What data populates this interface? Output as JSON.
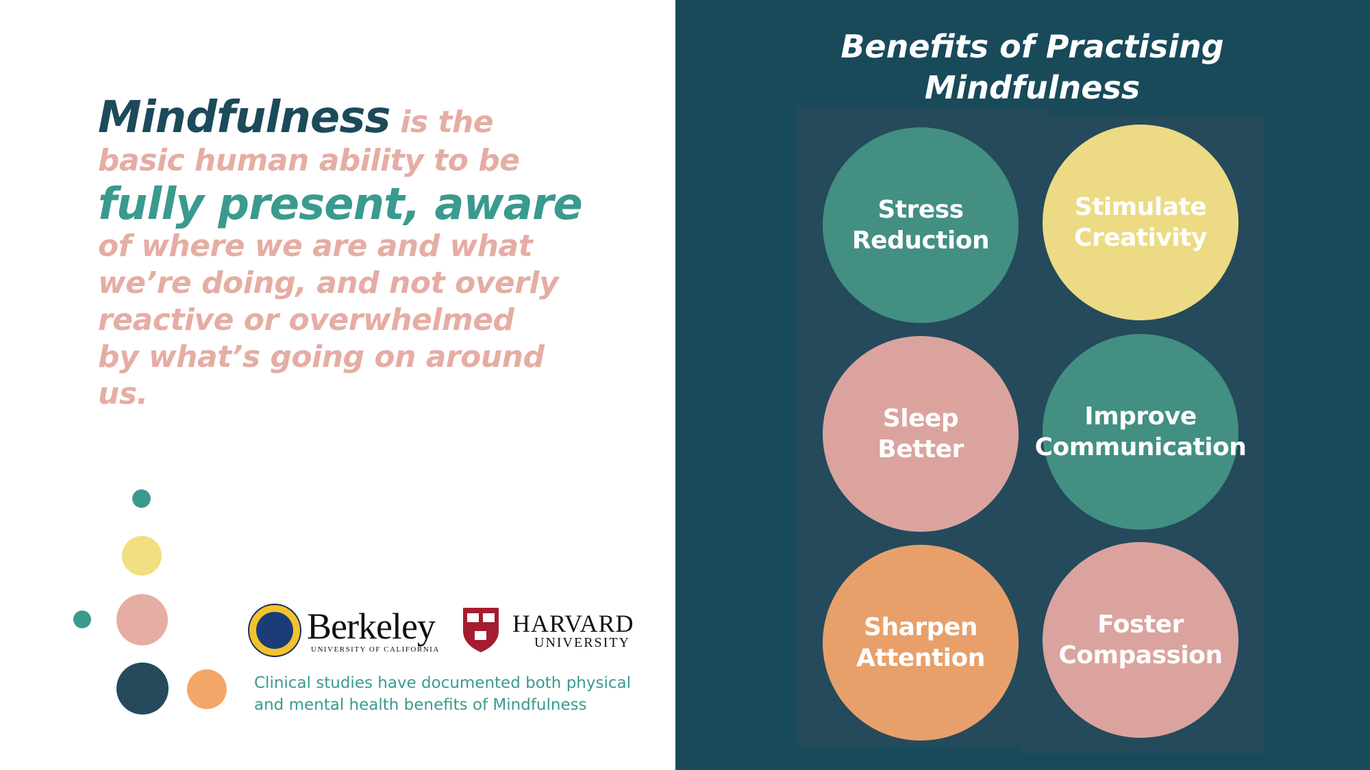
{
  "colors": {
    "dark_teal": "#1c4a5a",
    "teal": "#3a9a8e",
    "pink": "#e5ada3",
    "yellow": "#f1df82",
    "orange": "#e9a06c",
    "panel_bg": "#184a5a"
  },
  "quote": {
    "line1_bold": "Mindfulness",
    "line1_rest": " is the",
    "line2": "basic human ability to be",
    "line3": "fully present, aware",
    "line4": "of where we are and what",
    "line5": "we’re doing, and not overly",
    "line6": "reactive or overwhelmed",
    "line7": "by what’s going on around",
    "line8": "us."
  },
  "logos": {
    "berkeley_name": "Berkeley",
    "berkeley_sub": "UNIVERSITY OF CALIFORNIA",
    "harvard_name": "HARVARD",
    "harvard_sub": "UNIVERSITY"
  },
  "studies": {
    "line1": "Clinical studies have documented both physical",
    "line2": "and mental health benefits of Mindfulness"
  },
  "benefits": {
    "title_line1": "Benefits of Practising",
    "title_line2": "Mindfulness",
    "items": [
      {
        "line1": "Stress",
        "line2": "Reduction"
      },
      {
        "line1": "Stimulate",
        "line2": "Creativity"
      },
      {
        "line1": "Sleep",
        "line2": "Better"
      },
      {
        "line1": "Improve",
        "line2": "Communication"
      },
      {
        "line1": "Sharpen",
        "line2": "Attention"
      },
      {
        "line1": "Foster",
        "line2": "Compassion"
      }
    ]
  }
}
